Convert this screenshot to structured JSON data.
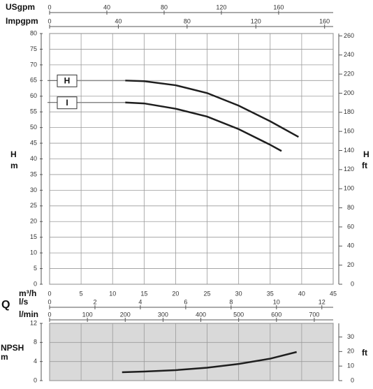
{
  "flow_label": "Q",
  "chart_data": [
    {
      "type": "line",
      "ylabel": "H",
      "yunit": "m",
      "y2label": "H",
      "y2unit": "ft",
      "xlabel": "m³/h",
      "xlim": [
        0,
        45
      ],
      "xticks": [
        0,
        5,
        10,
        15,
        20,
        25,
        30,
        35,
        40,
        45
      ],
      "ylim": [
        0,
        80
      ],
      "yticks": [
        0,
        5,
        10,
        15,
        20,
        25,
        30,
        35,
        40,
        45,
        50,
        55,
        60,
        65,
        70,
        75,
        80
      ],
      "y2lim": [
        0,
        262.47
      ],
      "y2ticks": [
        0,
        20,
        40,
        60,
        80,
        100,
        120,
        140,
        160,
        180,
        200,
        220,
        240,
        260
      ],
      "top_axes": [
        {
          "label": "USgpm",
          "xlim": [
            0,
            198.1
          ],
          "xticks": [
            0,
            40,
            80,
            120,
            160
          ]
        },
        {
          "label": "Impgpm",
          "xlim": [
            0,
            165
          ],
          "xticks": [
            0,
            40,
            80,
            120,
            160
          ]
        }
      ],
      "bottom_axes": [
        {
          "label": "l/s",
          "xlim": [
            0,
            12.5
          ],
          "xticks": [
            0,
            2,
            4,
            6,
            8,
            10,
            12
          ]
        },
        {
          "label": "l/min",
          "xlim": [
            0,
            750
          ],
          "xticks": [
            0,
            100,
            200,
            300,
            400,
            500,
            600,
            700
          ]
        }
      ],
      "grid": true,
      "background": "#ffffff",
      "series": [
        {
          "name": "H",
          "color": "#1e1e1e",
          "x": [
            12,
            15,
            20,
            25,
            30,
            35,
            39.5
          ],
          "values": [
            65,
            64.8,
            63.5,
            61,
            57,
            52,
            47
          ]
        },
        {
          "name": "I",
          "color": "#1e1e1e",
          "x": [
            12,
            15,
            20,
            25,
            30,
            35,
            36.8
          ],
          "values": [
            58,
            57.7,
            56,
            53.5,
            49.5,
            44.5,
            42.5
          ]
        }
      ]
    },
    {
      "type": "line",
      "ylabel": "NPSH",
      "yunit": "m",
      "y2unit": "ft",
      "xlim": [
        0,
        45
      ],
      "xticks": [
        0,
        5,
        10,
        15,
        20,
        25,
        30,
        35,
        40,
        45
      ],
      "ylim": [
        0,
        12
      ],
      "yticks": [
        0,
        4,
        8,
        12
      ],
      "y2lim": [
        0,
        39.37
      ],
      "y2ticks": [
        0,
        10,
        20,
        30
      ],
      "grid": true,
      "background": "#d9d9d9",
      "series": [
        {
          "color": "#1e1e1e",
          "x": [
            11.5,
            15,
            20,
            25,
            30,
            35,
            39.2
          ],
          "values": [
            1.75,
            1.9,
            2.2,
            2.7,
            3.5,
            4.6,
            6.0
          ]
        }
      ]
    }
  ]
}
